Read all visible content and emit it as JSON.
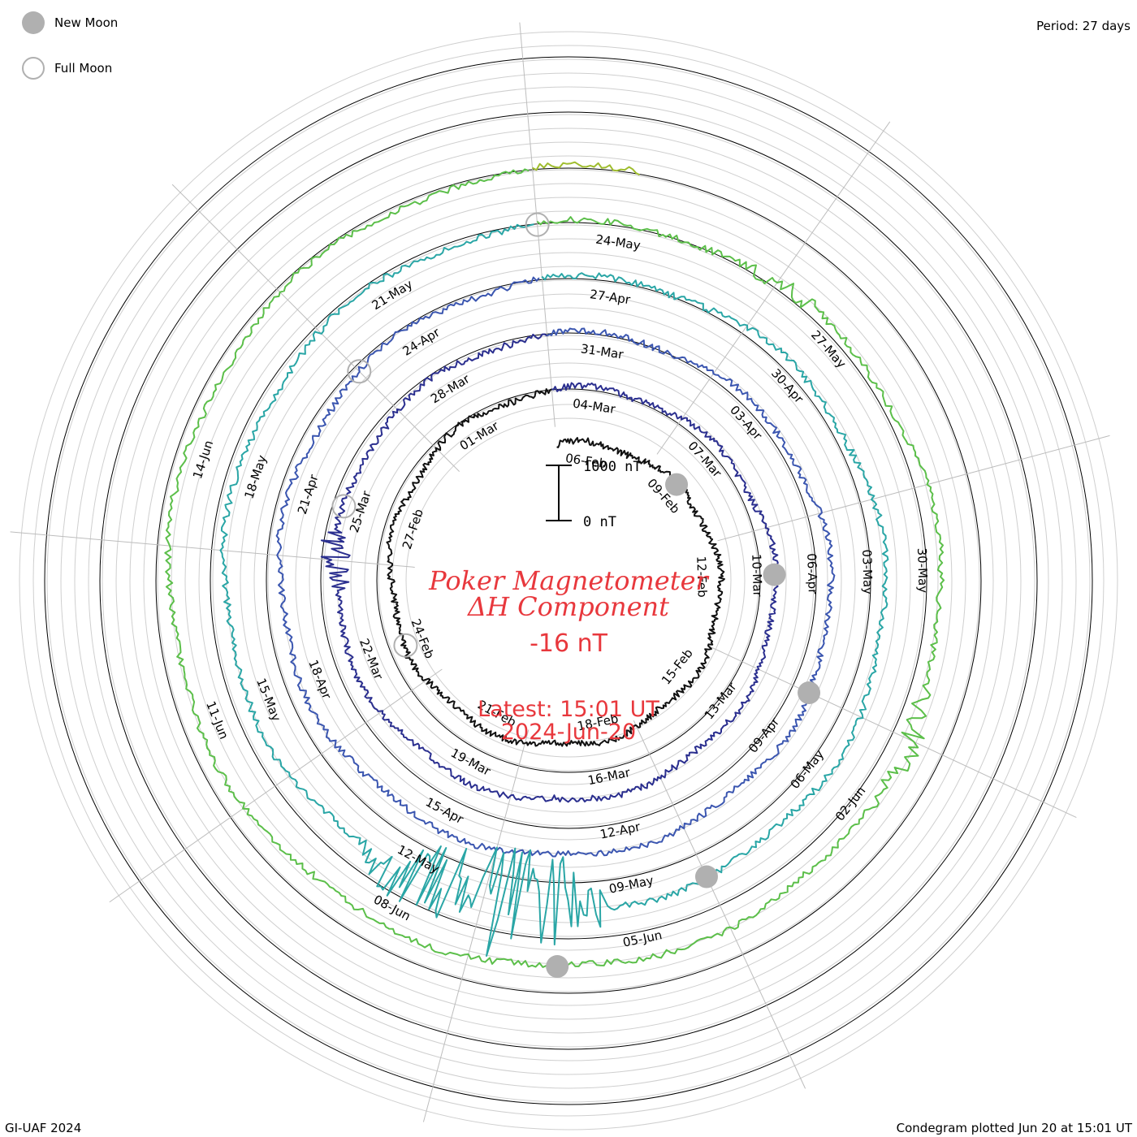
{
  "legend": {
    "new_moon": "New Moon",
    "full_moon": "Full Moon"
  },
  "period_label": "Period: 27 days",
  "credit": "GI-UAF 2024",
  "footer": "Condegram plotted Jun 20 at 15:01 UT",
  "center": {
    "title_line1": "Poker Magnetometer",
    "title_line2": "ΔH Component",
    "current_value": "-16 nT",
    "latest_line1": "Latest: 15:01 UT",
    "latest_line2": "2024-Jun-20"
  },
  "scale_bar": {
    "top_label": "1000 nT",
    "bottom_label": "0 nT"
  },
  "chart_data": {
    "type": "line",
    "layout": "spiral condegram",
    "period_days": 27,
    "colors": {
      "rotation_1": "#111111",
      "rotation_2": "#2b2f8f",
      "rotation_3": "#3b56b0",
      "rotation_4": "#2aa6a6",
      "rotation_5": "#5cbf4a",
      "rotation_6": "#9fbd2e",
      "rotation_7": "#c08a1a",
      "rotation_8": "#c0291e",
      "moon_marker": "#b0b0b0",
      "title": "#e8383d"
    },
    "date_labels": [
      "06-Feb",
      "09-Feb",
      "12-Feb",
      "15-Feb",
      "18-Feb",
      "21-Feb",
      "24-Feb",
      "27-Feb",
      "01-Mar",
      "04-Mar",
      "07-Mar",
      "10-Mar",
      "13-Mar",
      "16-Mar",
      "19-Mar",
      "22-Mar",
      "25-Mar",
      "28-Mar",
      "31-Mar",
      "03-Apr",
      "06-Apr",
      "09-Apr",
      "12-Apr",
      "15-Apr",
      "18-Apr",
      "21-Apr",
      "24-Apr",
      "27-Apr",
      "30-Apr",
      "03-May",
      "06-May",
      "09-May",
      "12-May",
      "15-May",
      "18-May",
      "21-May",
      "24-May",
      "27-May",
      "30-May",
      "02-Jun",
      "05-Jun",
      "08-Jun",
      "11-Jun",
      "14-Jun"
    ],
    "new_moons": [
      "2024-02-09",
      "2024-03-10",
      "2024-04-08",
      "2024-05-08",
      "2024-06-06"
    ],
    "full_moons": [
      "2024-02-24",
      "2024-03-25",
      "2024-04-23",
      "2024-05-23"
    ],
    "disturbances": [
      {
        "date": "2024-03-24",
        "amplitude_nT": 620
      },
      {
        "date": "2024-05-10",
        "amplitude_nT": 1900
      },
      {
        "date": "2024-05-11",
        "amplitude_nT": 2200
      },
      {
        "date": "2024-05-12",
        "amplitude_nT": 1500
      },
      {
        "date": "2024-05-26",
        "amplitude_nT": 420
      },
      {
        "date": "2024-06-01",
        "amplitude_nT": 520
      }
    ],
    "current_value_nT": -16
  }
}
